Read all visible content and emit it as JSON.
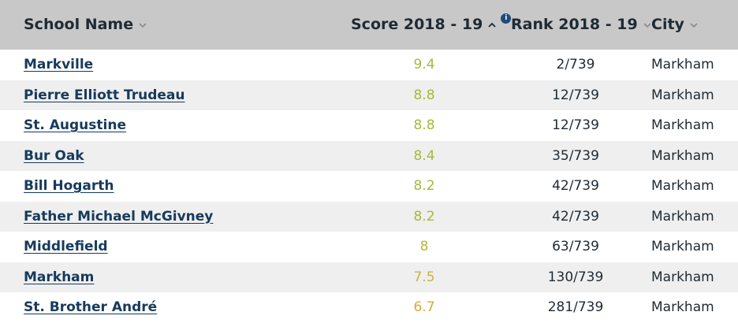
{
  "header": {
    "school_name": "School Name",
    "score": "Score 2018 - 19",
    "rank": "Rank 2018 - 19",
    "city": "City",
    "info_glyph": "i"
  },
  "colors": {
    "header_bg": "#c8c8c8",
    "row_alt_bg": "#efefef",
    "link": "#163a5c",
    "score_high": "#a7b83a",
    "score_mid": "#c9b43a",
    "score_low": "#d6a93a"
  },
  "rows": [
    {
      "name": "Markville",
      "score": "9.4",
      "rank": "2/739",
      "city": "Markham",
      "score_color": "#a7b83a"
    },
    {
      "name": "Pierre Elliott Trudeau",
      "score": "8.8",
      "rank": "12/739",
      "city": "Markham",
      "score_color": "#a7b83a"
    },
    {
      "name": "St. Augustine",
      "score": "8.8",
      "rank": "12/739",
      "city": "Markham",
      "score_color": "#a7b83a"
    },
    {
      "name": "Bur Oak",
      "score": "8.4",
      "rank": "35/739",
      "city": "Markham",
      "score_color": "#a7b83a"
    },
    {
      "name": "Bill Hogarth",
      "score": "8.2",
      "rank": "42/739",
      "city": "Markham",
      "score_color": "#a7b83a"
    },
    {
      "name": "Father Michael McGivney",
      "score": "8.2",
      "rank": "42/739",
      "city": "Markham",
      "score_color": "#a7b83a"
    },
    {
      "name": "Middlefield",
      "score": "8",
      "rank": "63/739",
      "city": "Markham",
      "score_color": "#b9b73a"
    },
    {
      "name": "Markham",
      "score": "7.5",
      "rank": "130/739",
      "city": "Markham",
      "score_color": "#c9b43a"
    },
    {
      "name": "St. Brother André",
      "score": "6.7",
      "rank": "281/739",
      "city": "Markham",
      "score_color": "#d6a93a"
    }
  ]
}
